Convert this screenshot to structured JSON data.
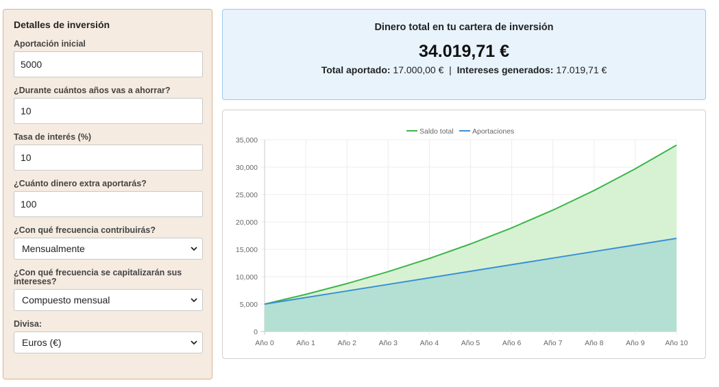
{
  "form": {
    "title": "Detalles de inversión",
    "fields": [
      {
        "label": "Aportación inicial",
        "value": "5000"
      },
      {
        "label": "¿Durante cuántos años vas a ahorrar?",
        "value": "10"
      },
      {
        "label": "Tasa de interés (%)",
        "value": "10"
      },
      {
        "label": "¿Cuánto dinero extra aportarás?",
        "value": "100"
      }
    ],
    "selects": [
      {
        "label": "¿Con qué frecuencia contribuirás?",
        "value": "Mensualmente"
      },
      {
        "label": "¿Con qué frecuencia se capitalizarán sus intereses?",
        "value": "Compuesto mensual"
      },
      {
        "label": "Divisa:",
        "value": "Euros (€)"
      }
    ]
  },
  "summary": {
    "title": "Dinero total en tu cartera de inversión",
    "total": "34.019,71 €",
    "contributed_label": "Total aportado:",
    "contributed_value": "17.000,00 €",
    "separator": "|",
    "interest_label": "Intereses generados:",
    "interest_value": "17.019,71 €"
  },
  "colors": {
    "saldo_line": "#3cb54a",
    "saldo_fill": "#d7f2d3",
    "aport_line": "#3a8fd6",
    "aport_fill": "#b3e0d2"
  },
  "chart_data": {
    "type": "area",
    "categories": [
      "Año 0",
      "Año 1",
      "Año 2",
      "Año 3",
      "Año 4",
      "Año 5",
      "Año 6",
      "Año 7",
      "Año 8",
      "Año 9",
      "Año 10"
    ],
    "series": [
      {
        "name": "Saldo total",
        "values": [
          5000,
          6781,
          8750,
          10925,
          13329,
          15984,
          18918,
          22160,
          25741,
          29698,
          34020
        ]
      },
      {
        "name": "Aportaciones",
        "values": [
          5000,
          6200,
          7400,
          8600,
          9800,
          11000,
          12200,
          13400,
          14600,
          15800,
          17000
        ]
      }
    ],
    "yticks": [
      "0",
      "5,000",
      "10,000",
      "15,000",
      "20,000",
      "25,000",
      "30,000",
      "35,000"
    ],
    "ylim": [
      0,
      35000
    ],
    "legend_position": "top",
    "grid": true
  }
}
